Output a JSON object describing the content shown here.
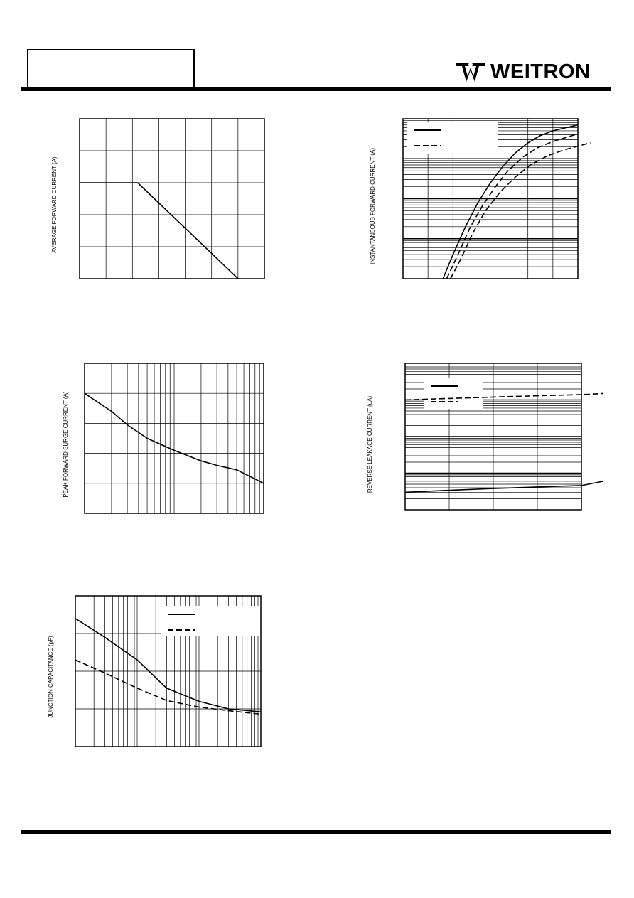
{
  "header": {
    "part_number": "",
    "brand": "WEITRON"
  },
  "chart_data": [
    {
      "id": "derating",
      "type": "line",
      "xscale": "linear",
      "yscale": "linear",
      "xlim": [
        0,
        7
      ],
      "ylim": [
        0,
        5
      ],
      "grid": true,
      "title": "",
      "xlabel": "",
      "ylabel": "AVERAGE FORWARD CURRENT (A)",
      "series": [
        {
          "name": "",
          "style": "solid",
          "x": [
            0,
            2.2,
            6
          ],
          "y": [
            3,
            3,
            0
          ]
        }
      ]
    },
    {
      "id": "forward",
      "type": "line",
      "xscale": "linear",
      "yscale": "log",
      "xlim": [
        0,
        7
      ],
      "ylim": [
        0.01,
        100
      ],
      "grid": true,
      "title": "",
      "xlabel": "",
      "ylabel": "INSTANTANEOUS FORWARD CURRENT (A)",
      "legend": "top-left",
      "series": [
        {
          "name": "",
          "style": "solid",
          "x": [
            1.6,
            2.0,
            2.5,
            3.0,
            3.5,
            4.0,
            4.5,
            5.0,
            5.5,
            6.0,
            7.0
          ],
          "y": [
            0.01,
            0.04,
            0.2,
            0.8,
            2.5,
            6.5,
            14,
            25,
            38,
            50,
            70
          ]
        },
        {
          "name": "",
          "style": "dashed",
          "x": [
            1.75,
            2.2,
            2.7,
            3.2,
            3.7,
            4.2,
            4.8,
            5.4,
            6.0,
            7.0
          ],
          "y": [
            0.01,
            0.04,
            0.2,
            0.7,
            2.0,
            5.0,
            11,
            19,
            27,
            42
          ]
        },
        {
          "name": "",
          "style": "dashed",
          "x": [
            1.9,
            2.3,
            2.8,
            3.3,
            3.9,
            4.5,
            5.1,
            5.8,
            6.5,
            7.5
          ],
          "y": [
            0.01,
            0.03,
            0.14,
            0.5,
            1.5,
            3.5,
            7,
            12,
            17,
            25
          ]
        }
      ]
    },
    {
      "id": "surge",
      "type": "line",
      "xscale": "log",
      "yscale": "linear",
      "xlim": [
        1,
        100
      ],
      "ylim": [
        0,
        5
      ],
      "grid": true,
      "title": "",
      "xlabel": "",
      "ylabel": "PEAK FORWARD SURGE CURRENT (A)",
      "series": [
        {
          "name": "",
          "style": "solid",
          "x": [
            1,
            2,
            3,
            5,
            10,
            20,
            30,
            50,
            100
          ],
          "y": [
            4,
            3.4,
            2.95,
            2.5,
            2.1,
            1.75,
            1.6,
            1.45,
            1.0
          ]
        }
      ]
    },
    {
      "id": "leakage",
      "type": "line",
      "xscale": "linear",
      "yscale": "log",
      "xlim": [
        0,
        4
      ],
      "ylim": [
        0.1,
        1000
      ],
      "grid": true,
      "title": "",
      "xlabel": "",
      "ylabel": "REVERSE LEAKAGE CURRENT (uA)",
      "legend": "top-left",
      "series": [
        {
          "name": "",
          "style": "solid",
          "x": [
            0,
            1,
            2,
            3,
            4,
            4.5
          ],
          "y": [
            0.3,
            0.34,
            0.38,
            0.42,
            0.46,
            0.6
          ]
        },
        {
          "name": "",
          "style": "dashed",
          "x": [
            0,
            0.5,
            1,
            2,
            3,
            4,
            4.5
          ],
          "y": [
            100,
            105,
            110,
            120,
            130,
            140,
            150
          ]
        }
      ]
    },
    {
      "id": "capacitance",
      "type": "line",
      "xscale": "log",
      "yscale": "linear",
      "xlim": [
        0.1,
        100
      ],
      "ylim": [
        0,
        4
      ],
      "grid": true,
      "title": "",
      "xlabel": "",
      "ylabel": "JUNCTION CAPACITANCE  (pF)",
      "legend": "top-right",
      "series": [
        {
          "name": "",
          "style": "solid",
          "x": [
            0.1,
            0.3,
            1,
            3,
            10,
            30,
            100
          ],
          "y": [
            3.4,
            2.9,
            2.3,
            1.55,
            1.2,
            1.0,
            0.92
          ]
        },
        {
          "name": "",
          "style": "dashed",
          "x": [
            0.1,
            0.3,
            1,
            3,
            10,
            30,
            100
          ],
          "y": [
            2.3,
            1.95,
            1.55,
            1.22,
            1.05,
            0.95,
            0.86
          ]
        }
      ]
    }
  ]
}
